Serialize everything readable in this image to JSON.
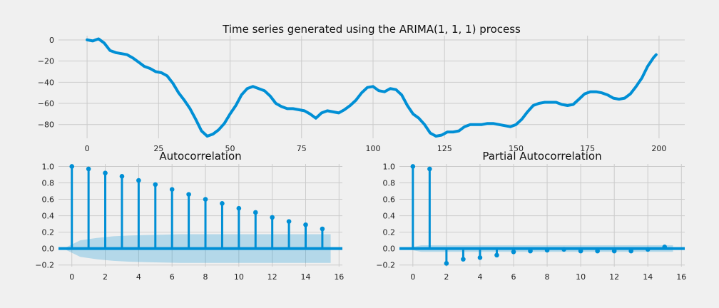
{
  "chart_data": [
    {
      "type": "line",
      "title": "Time series generated using the ARIMA(1, 1, 1) process",
      "xlim": [
        -10,
        209
      ],
      "ylim": [
        -93,
        4
      ],
      "xticks": [
        0,
        25,
        50,
        75,
        100,
        125,
        150,
        175,
        200
      ],
      "yticks": [
        0,
        -20,
        -40,
        -60,
        -80
      ],
      "grid": true,
      "color": "#008fd5",
      "series": [
        {
          "x": [
            0,
            2,
            4,
            6,
            8,
            10,
            12,
            14,
            16,
            18,
            20,
            22,
            24,
            26,
            28,
            30,
            32,
            34,
            36,
            38,
            40,
            42,
            44,
            46,
            48,
            50,
            52,
            54,
            56,
            58,
            60,
            62,
            64,
            66,
            68,
            70,
            72,
            74,
            76,
            78,
            80,
            82,
            84,
            86,
            88,
            90,
            92,
            94,
            96,
            98,
            100,
            102,
            104,
            106,
            108,
            110,
            112,
            114,
            116,
            118,
            120,
            122,
            124,
            126,
            128,
            130,
            132,
            134,
            136,
            138,
            140,
            142,
            144,
            146,
            148,
            150,
            152,
            154,
            156,
            158,
            160,
            162,
            164,
            166,
            168,
            170,
            172,
            174,
            176,
            178,
            180,
            182,
            184,
            186,
            188,
            190,
            192,
            194,
            196,
            198,
            199
          ],
          "y": [
            0,
            -1,
            1,
            -3,
            -10,
            -12,
            -13,
            -14,
            -17,
            -21,
            -25,
            -27,
            -30,
            -31,
            -34,
            -41,
            -50,
            -57,
            -65,
            -75,
            -86,
            -91,
            -89,
            -85,
            -79,
            -70,
            -62,
            -52,
            -46,
            -44,
            -46,
            -48,
            -53,
            -60,
            -63,
            -65,
            -65,
            -66,
            -67,
            -70,
            -74,
            -69,
            -67,
            -68,
            -69,
            -66,
            -62,
            -57,
            -50,
            -45,
            -44,
            -48,
            -49,
            -46,
            -47,
            -52,
            -62,
            -70,
            -74,
            -80,
            -88,
            -91,
            -90,
            -87,
            -87,
            -86,
            -82,
            -80,
            -80,
            -80,
            -79,
            -79,
            -80,
            -81,
            -82,
            -80,
            -75,
            -68,
            -62,
            -60,
            -59,
            -59,
            -59,
            -61,
            -62,
            -61,
            -56,
            -51,
            -49,
            -49,
            -50,
            -52,
            -55,
            -56,
            -55,
            -51,
            -44,
            -36,
            -25,
            -17,
            -14
          ]
        }
      ]
    },
    {
      "type": "bar",
      "title": "Autocorrelation",
      "xlim": [
        -0.8,
        16.2
      ],
      "ylim": [
        -0.22,
        1.03
      ],
      "xticks": [
        0,
        2,
        4,
        6,
        8,
        10,
        12,
        14,
        16
      ],
      "yticks": [
        -0.2,
        0.0,
        0.2,
        0.4,
        0.6,
        0.8,
        1.0
      ],
      "grid": true,
      "color": "#008fd5",
      "x": [
        0,
        1,
        2,
        3,
        4,
        5,
        6,
        7,
        8,
        9,
        10,
        11,
        12,
        13,
        14,
        15
      ],
      "values": [
        1.0,
        0.97,
        0.92,
        0.88,
        0.83,
        0.78,
        0.72,
        0.66,
        0.6,
        0.55,
        0.49,
        0.44,
        0.38,
        0.33,
        0.29,
        0.24
      ],
      "confint_upper": [
        0.0,
        0.1,
        0.13,
        0.15,
        0.16,
        0.165,
        0.17,
        0.175,
        0.175,
        0.175,
        0.175,
        0.175,
        0.175,
        0.175,
        0.175,
        0.175,
        0.175
      ]
    },
    {
      "type": "bar",
      "title": "Partial Autocorrelation",
      "xlim": [
        -0.8,
        16.2
      ],
      "ylim": [
        -0.22,
        1.03
      ],
      "xticks": [
        0,
        2,
        4,
        6,
        8,
        10,
        12,
        14,
        16
      ],
      "yticks": [
        -0.2,
        0.0,
        0.2,
        0.4,
        0.6,
        0.8,
        1.0
      ],
      "grid": true,
      "color": "#008fd5",
      "x": [
        0,
        1,
        2,
        3,
        4,
        5,
        6,
        7,
        8,
        9,
        10,
        11,
        12,
        13,
        14,
        15
      ],
      "values": [
        1.0,
        0.97,
        -0.18,
        -0.13,
        -0.11,
        -0.08,
        -0.04,
        -0.03,
        -0.02,
        -0.01,
        -0.03,
        -0.03,
        -0.03,
        -0.03,
        -0.01,
        0.02
      ],
      "confint_upper": [
        0.0,
        0.04,
        0.04,
        0.04,
        0.04,
        0.04,
        0.04,
        0.04,
        0.04,
        0.04,
        0.04,
        0.04,
        0.04,
        0.04,
        0.04,
        0.04,
        0.04
      ]
    }
  ]
}
